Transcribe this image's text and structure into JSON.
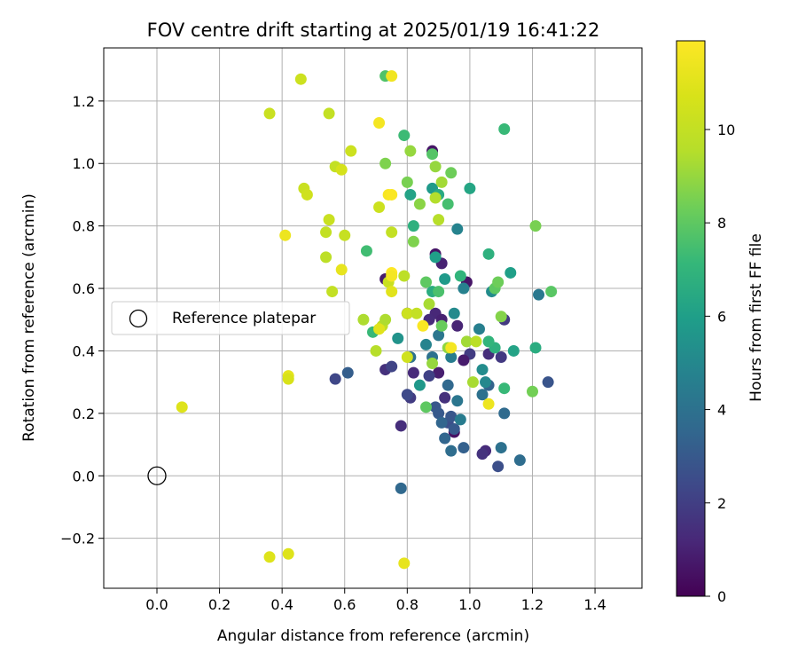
{
  "chart_data": {
    "type": "scatter",
    "title": "FOV centre drift starting at 2025/01/19 16:41:22",
    "xlabel": "Angular distance from reference (arcmin)",
    "ylabel": "Rotation from reference (arcmin)",
    "xlim": [
      -0.17,
      1.55
    ],
    "ylim": [
      -0.36,
      1.37
    ],
    "xticks": [
      0.0,
      0.2,
      0.4,
      0.6,
      0.8,
      1.0,
      1.2,
      1.4
    ],
    "xtick_labels": [
      "0.0",
      "0.2",
      "0.4",
      "0.6",
      "0.8",
      "1.0",
      "1.2",
      "1.4"
    ],
    "yticks": [
      -0.2,
      0.0,
      0.2,
      0.4,
      0.6,
      0.8,
      1.0,
      1.2
    ],
    "ytick_labels": [
      "−0.2",
      "0.0",
      "0.2",
      "0.4",
      "0.6",
      "0.8",
      "1.0",
      "1.2"
    ],
    "grid": true,
    "legend": {
      "label": "Reference platepar",
      "placement": "center-left"
    },
    "reference_point": {
      "x": 0.0,
      "y": 0.0
    },
    "colorbar": {
      "label": "Hours from first FF file",
      "colormap": "viridis",
      "range": [
        0,
        11.9
      ],
      "ticks": [
        0,
        2,
        4,
        6,
        8,
        10
      ],
      "tick_labels": [
        "0",
        "2",
        "4",
        "6",
        "8",
        "10"
      ]
    },
    "points": [
      {
        "x": 0.88,
        "y": 1.04,
        "h": 0.6
      },
      {
        "x": 0.89,
        "y": 0.71,
        "h": 0.6
      },
      {
        "x": 0.91,
        "y": 0.68,
        "h": 1.0
      },
      {
        "x": 0.73,
        "y": 0.63,
        "h": 0.8
      },
      {
        "x": 0.99,
        "y": 0.62,
        "h": 0.6
      },
      {
        "x": 0.89,
        "y": 0.52,
        "h": 1.2
      },
      {
        "x": 0.87,
        "y": 0.5,
        "h": 1.3
      },
      {
        "x": 0.91,
        "y": 0.5,
        "h": 1.0
      },
      {
        "x": 1.11,
        "y": 0.5,
        "h": 1.8
      },
      {
        "x": 0.96,
        "y": 0.48,
        "h": 1.1
      },
      {
        "x": 0.8,
        "y": 0.52,
        "h": 1.7
      },
      {
        "x": 1.0,
        "y": 0.39,
        "h": 1.9
      },
      {
        "x": 1.06,
        "y": 0.39,
        "h": 1.4
      },
      {
        "x": 1.1,
        "y": 0.38,
        "h": 1.8
      },
      {
        "x": 0.98,
        "y": 0.37,
        "h": 0.8
      },
      {
        "x": 0.73,
        "y": 0.34,
        "h": 1.5
      },
      {
        "x": 0.75,
        "y": 0.35,
        "h": 2.2
      },
      {
        "x": 0.82,
        "y": 0.33,
        "h": 1.3
      },
      {
        "x": 0.9,
        "y": 0.33,
        "h": 0.9
      },
      {
        "x": 0.87,
        "y": 0.32,
        "h": 2.1
      },
      {
        "x": 0.81,
        "y": 0.25,
        "h": 1.9
      },
      {
        "x": 0.8,
        "y": 0.26,
        "h": 2.4
      },
      {
        "x": 0.92,
        "y": 0.25,
        "h": 1.5
      },
      {
        "x": 0.89,
        "y": 0.22,
        "h": 2.9
      },
      {
        "x": 0.9,
        "y": 0.2,
        "h": 3.0
      },
      {
        "x": 0.93,
        "y": 0.17,
        "h": 2.6
      },
      {
        "x": 0.94,
        "y": 0.19,
        "h": 2.9
      },
      {
        "x": 0.78,
        "y": 0.16,
        "h": 1.4
      },
      {
        "x": 0.91,
        "y": 0.17,
        "h": 3.5
      },
      {
        "x": 0.95,
        "y": 0.14,
        "h": 0.5
      },
      {
        "x": 0.95,
        "y": 0.15,
        "h": 3.0
      },
      {
        "x": 0.92,
        "y": 0.12,
        "h": 3.5
      },
      {
        "x": 1.05,
        "y": 0.08,
        "h": 1.3
      },
      {
        "x": 1.04,
        "y": 0.07,
        "h": 1.6
      },
      {
        "x": 0.94,
        "y": 0.08,
        "h": 3.8
      },
      {
        "x": 0.98,
        "y": 0.09,
        "h": 3.3
      },
      {
        "x": 1.09,
        "y": 0.03,
        "h": 2.6
      },
      {
        "x": 1.1,
        "y": 0.09,
        "h": 4.0
      },
      {
        "x": 1.16,
        "y": 0.05,
        "h": 3.8
      },
      {
        "x": 0.57,
        "y": 0.31,
        "h": 2.3
      },
      {
        "x": 0.61,
        "y": 0.33,
        "h": 3.2
      },
      {
        "x": 0.78,
        "y": -0.04,
        "h": 3.6
      },
      {
        "x": 1.25,
        "y": 0.3,
        "h": 2.8
      },
      {
        "x": 1.06,
        "y": 0.29,
        "h": 3.4
      },
      {
        "x": 1.04,
        "y": 0.26,
        "h": 4.0
      },
      {
        "x": 1.11,
        "y": 0.2,
        "h": 3.7
      },
      {
        "x": 0.97,
        "y": 0.18,
        "h": 4.5
      },
      {
        "x": 0.96,
        "y": 0.24,
        "h": 4.2
      },
      {
        "x": 0.93,
        "y": 0.29,
        "h": 3.6
      },
      {
        "x": 0.88,
        "y": 0.38,
        "h": 4.0
      },
      {
        "x": 0.94,
        "y": 0.38,
        "h": 4.5
      },
      {
        "x": 0.9,
        "y": 0.45,
        "h": 4.2
      },
      {
        "x": 0.86,
        "y": 0.42,
        "h": 4.8
      },
      {
        "x": 0.81,
        "y": 0.38,
        "h": 4.0
      },
      {
        "x": 0.77,
        "y": 0.44,
        "h": 5.5
      },
      {
        "x": 1.04,
        "y": 0.34,
        "h": 5.2
      },
      {
        "x": 1.05,
        "y": 0.3,
        "h": 5.0
      },
      {
        "x": 0.84,
        "y": 0.29,
        "h": 5.7
      },
      {
        "x": 1.03,
        "y": 0.47,
        "h": 4.6
      },
      {
        "x": 0.95,
        "y": 0.52,
        "h": 5.1
      },
      {
        "x": 0.98,
        "y": 0.6,
        "h": 4.7
      },
      {
        "x": 1.0,
        "y": 0.92,
        "h": 6.3
      },
      {
        "x": 0.96,
        "y": 0.79,
        "h": 4.8
      },
      {
        "x": 1.07,
        "y": 0.59,
        "h": 5.2
      },
      {
        "x": 1.22,
        "y": 0.58,
        "h": 4.3
      },
      {
        "x": 1.21,
        "y": 0.41,
        "h": 6.6
      },
      {
        "x": 1.14,
        "y": 0.4,
        "h": 6.2
      },
      {
        "x": 1.08,
        "y": 0.41,
        "h": 6.8
      },
      {
        "x": 1.06,
        "y": 0.43,
        "h": 7.0
      },
      {
        "x": 1.11,
        "y": 0.28,
        "h": 7.2
      },
      {
        "x": 1.13,
        "y": 0.65,
        "h": 6.0
      },
      {
        "x": 1.06,
        "y": 0.71,
        "h": 6.8
      },
      {
        "x": 1.11,
        "y": 1.11,
        "h": 7.2
      },
      {
        "x": 0.82,
        "y": 0.8,
        "h": 6.8
      },
      {
        "x": 0.81,
        "y": 0.9,
        "h": 6.2
      },
      {
        "x": 0.88,
        "y": 0.92,
        "h": 5.8
      },
      {
        "x": 0.9,
        "y": 0.9,
        "h": 6.5
      },
      {
        "x": 0.89,
        "y": 0.7,
        "h": 6.0
      },
      {
        "x": 0.92,
        "y": 0.63,
        "h": 5.8
      },
      {
        "x": 0.88,
        "y": 0.59,
        "h": 6.6
      },
      {
        "x": 0.97,
        "y": 0.64,
        "h": 7.0
      },
      {
        "x": 0.93,
        "y": 0.87,
        "h": 7.5
      },
      {
        "x": 0.94,
        "y": 0.97,
        "h": 8.3
      },
      {
        "x": 0.79,
        "y": 1.09,
        "h": 7.3
      },
      {
        "x": 0.88,
        "y": 1.03,
        "h": 7.8
      },
      {
        "x": 0.82,
        "y": 0.75,
        "h": 8.6
      },
      {
        "x": 0.86,
        "y": 0.62,
        "h": 8.0
      },
      {
        "x": 0.9,
        "y": 0.59,
        "h": 7.6
      },
      {
        "x": 1.08,
        "y": 0.6,
        "h": 8.0
      },
      {
        "x": 1.09,
        "y": 0.62,
        "h": 8.3
      },
      {
        "x": 1.1,
        "y": 0.51,
        "h": 8.7
      },
      {
        "x": 1.2,
        "y": 0.27,
        "h": 8.4
      },
      {
        "x": 1.26,
        "y": 0.59,
        "h": 7.9
      },
      {
        "x": 1.21,
        "y": 0.8,
        "h": 8.5
      },
      {
        "x": 0.73,
        "y": 1.28,
        "h": 7.7
      },
      {
        "x": 0.67,
        "y": 0.72,
        "h": 7.4
      },
      {
        "x": 0.69,
        "y": 0.46,
        "h": 7.2
      },
      {
        "x": 0.86,
        "y": 0.22,
        "h": 8.0
      },
      {
        "x": 0.81,
        "y": 1.04,
        "h": 9.0
      },
      {
        "x": 0.84,
        "y": 0.87,
        "h": 8.8
      },
      {
        "x": 0.89,
        "y": 0.89,
        "h": 9.5
      },
      {
        "x": 0.91,
        "y": 0.94,
        "h": 9.2
      },
      {
        "x": 0.8,
        "y": 0.94,
        "h": 8.5
      },
      {
        "x": 0.73,
        "y": 1.0,
        "h": 8.6
      },
      {
        "x": 0.89,
        "y": 0.99,
        "h": 9.0
      },
      {
        "x": 0.87,
        "y": 0.55,
        "h": 9.3
      },
      {
        "x": 0.91,
        "y": 0.48,
        "h": 8.2
      },
      {
        "x": 0.99,
        "y": 0.43,
        "h": 9.2
      },
      {
        "x": 1.02,
        "y": 0.43,
        "h": 9.7
      },
      {
        "x": 0.93,
        "y": 0.41,
        "h": 8.9
      },
      {
        "x": 0.88,
        "y": 0.36,
        "h": 9.0
      },
      {
        "x": 1.01,
        "y": 0.3,
        "h": 9.3
      },
      {
        "x": 0.79,
        "y": 0.64,
        "h": 9.8
      },
      {
        "x": 0.74,
        "y": 0.62,
        "h": 10.2
      },
      {
        "x": 0.9,
        "y": 0.82,
        "h": 9.6
      },
      {
        "x": 0.66,
        "y": 0.5,
        "h": 9.4
      },
      {
        "x": 0.7,
        "y": 0.4,
        "h": 9.6
      },
      {
        "x": 0.72,
        "y": 0.48,
        "h": 9.9
      },
      {
        "x": 0.73,
        "y": 0.5,
        "h": 9.4
      },
      {
        "x": 0.8,
        "y": 0.52,
        "h": 10.3
      },
      {
        "x": 0.83,
        "y": 0.52,
        "h": 10.0
      },
      {
        "x": 0.8,
        "y": 0.38,
        "h": 10.4
      },
      {
        "x": 0.75,
        "y": 0.78,
        "h": 10.0
      },
      {
        "x": 0.71,
        "y": 0.86,
        "h": 10.3
      },
      {
        "x": 0.6,
        "y": 0.77,
        "h": 10.1
      },
      {
        "x": 0.54,
        "y": 0.78,
        "h": 10.0
      },
      {
        "x": 0.54,
        "y": 0.7,
        "h": 9.8
      },
      {
        "x": 0.55,
        "y": 0.82,
        "h": 10.2
      },
      {
        "x": 0.56,
        "y": 0.59,
        "h": 10.0
      },
      {
        "x": 0.47,
        "y": 0.92,
        "h": 10.2
      },
      {
        "x": 0.48,
        "y": 0.9,
        "h": 10.4
      },
      {
        "x": 0.57,
        "y": 0.99,
        "h": 10.0
      },
      {
        "x": 0.59,
        "y": 0.98,
        "h": 10.6
      },
      {
        "x": 0.62,
        "y": 1.04,
        "h": 10.3
      },
      {
        "x": 0.55,
        "y": 1.16,
        "h": 10.0
      },
      {
        "x": 0.46,
        "y": 1.27,
        "h": 10.3
      },
      {
        "x": 0.36,
        "y": 1.16,
        "h": 10.2
      },
      {
        "x": 0.71,
        "y": 1.13,
        "h": 11.6
      },
      {
        "x": 0.75,
        "y": 1.28,
        "h": 11.5
      },
      {
        "x": 0.74,
        "y": 0.9,
        "h": 11.7
      },
      {
        "x": 0.75,
        "y": 0.9,
        "h": 11.8
      },
      {
        "x": 0.41,
        "y": 0.77,
        "h": 11.4
      },
      {
        "x": 0.59,
        "y": 0.66,
        "h": 11.2
      },
      {
        "x": 0.75,
        "y": 0.65,
        "h": 11.9
      },
      {
        "x": 0.75,
        "y": 0.64,
        "h": 11.6
      },
      {
        "x": 0.75,
        "y": 0.59,
        "h": 11.0
      },
      {
        "x": 0.71,
        "y": 0.47,
        "h": 11.0
      },
      {
        "x": 0.85,
        "y": 0.48,
        "h": 11.8
      },
      {
        "x": 0.94,
        "y": 0.41,
        "h": 11.6
      },
      {
        "x": 1.06,
        "y": 0.23,
        "h": 11.4
      },
      {
        "x": 0.42,
        "y": 0.32,
        "h": 11.1
      },
      {
        "x": 0.42,
        "y": 0.31,
        "h": 10.7
      },
      {
        "x": 0.08,
        "y": 0.22,
        "h": 10.9
      },
      {
        "x": 0.36,
        "y": -0.26,
        "h": 10.9
      },
      {
        "x": 0.42,
        "y": -0.25,
        "h": 10.9
      },
      {
        "x": 0.79,
        "y": -0.28,
        "h": 11.2
      }
    ]
  }
}
